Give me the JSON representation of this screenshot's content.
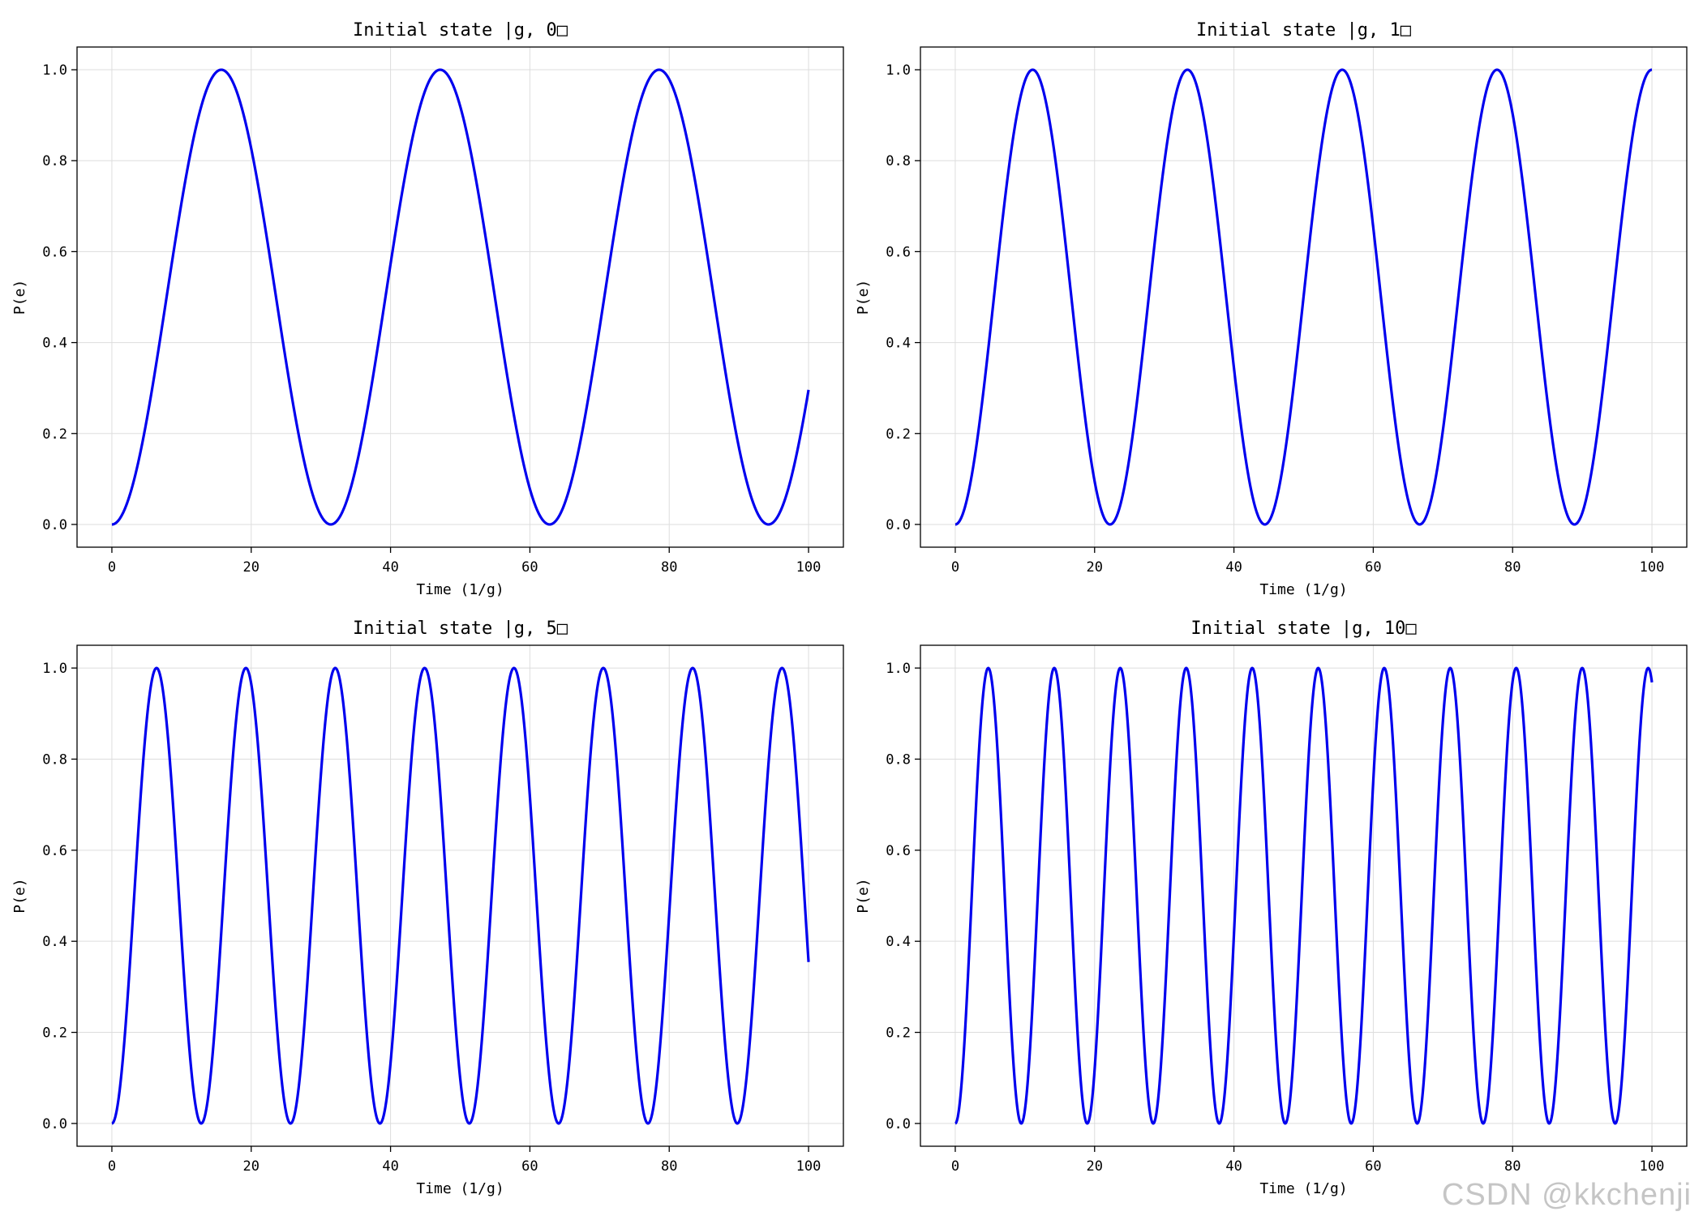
{
  "figure": {
    "watermark": "CSDN @kkchenji",
    "line_color": "#0000ee",
    "grid_color": "#dddddd"
  },
  "chart_data": [
    {
      "type": "line",
      "title": "Initial state |g, 0□",
      "xlabel": "Time (1/g)",
      "ylabel": "P(e)",
      "xlim": [
        -5,
        105
      ],
      "ylim": [
        -0.05,
        1.05
      ],
      "xticks": [
        0,
        20,
        40,
        60,
        80,
        100
      ],
      "yticks": [
        0.0,
        0.2,
        0.4,
        0.6,
        0.8,
        1.0
      ],
      "ytick_labels": [
        "0.0",
        "0.2",
        "0.4",
        "0.6",
        "0.8",
        "1.0"
      ],
      "grid": true,
      "series": [
        {
          "function": "sin^2(omega*t/2)",
          "omega": 0.2,
          "t_range": [
            0,
            100
          ],
          "color": "#0000ee"
        }
      ]
    },
    {
      "type": "line",
      "title": "Initial state |g, 1□",
      "xlabel": "Time (1/g)",
      "ylabel": "P(e)",
      "xlim": [
        -5,
        105
      ],
      "ylim": [
        -0.05,
        1.05
      ],
      "xticks": [
        0,
        20,
        40,
        60,
        80,
        100
      ],
      "yticks": [
        0.0,
        0.2,
        0.4,
        0.6,
        0.8,
        1.0
      ],
      "ytick_labels": [
        "0.0",
        "0.2",
        "0.4",
        "0.6",
        "0.8",
        "1.0"
      ],
      "grid": true,
      "series": [
        {
          "function": "sin^2(omega*t/2)",
          "omega": 0.2828,
          "t_range": [
            0,
            100
          ],
          "color": "#0000ee"
        }
      ]
    },
    {
      "type": "line",
      "title": "Initial state |g, 5□",
      "xlabel": "Time (1/g)",
      "ylabel": "P(e)",
      "xlim": [
        -5,
        105
      ],
      "ylim": [
        -0.05,
        1.05
      ],
      "xticks": [
        0,
        20,
        40,
        60,
        80,
        100
      ],
      "yticks": [
        0.0,
        0.2,
        0.4,
        0.6,
        0.8,
        1.0
      ],
      "ytick_labels": [
        "0.0",
        "0.2",
        "0.4",
        "0.6",
        "0.8",
        "1.0"
      ],
      "grid": true,
      "series": [
        {
          "function": "sin^2(omega*t/2)",
          "omega": 0.4899,
          "t_range": [
            0,
            100
          ],
          "color": "#0000ee"
        }
      ]
    },
    {
      "type": "line",
      "title": "Initial state |g, 10□",
      "xlabel": "Time (1/g)",
      "ylabel": "P(e)",
      "xlim": [
        -5,
        105
      ],
      "ylim": [
        -0.05,
        1.05
      ],
      "xticks": [
        0,
        20,
        40,
        60,
        80,
        100
      ],
      "yticks": [
        0.0,
        0.2,
        0.4,
        0.6,
        0.8,
        1.0
      ],
      "ytick_labels": [
        "0.0",
        "0.2",
        "0.4",
        "0.6",
        "0.8",
        "1.0"
      ],
      "grid": true,
      "series": [
        {
          "function": "sin^2(omega*t/2)",
          "omega": 0.6633,
          "t_range": [
            0,
            100
          ],
          "color": "#0000ee"
        }
      ]
    }
  ]
}
